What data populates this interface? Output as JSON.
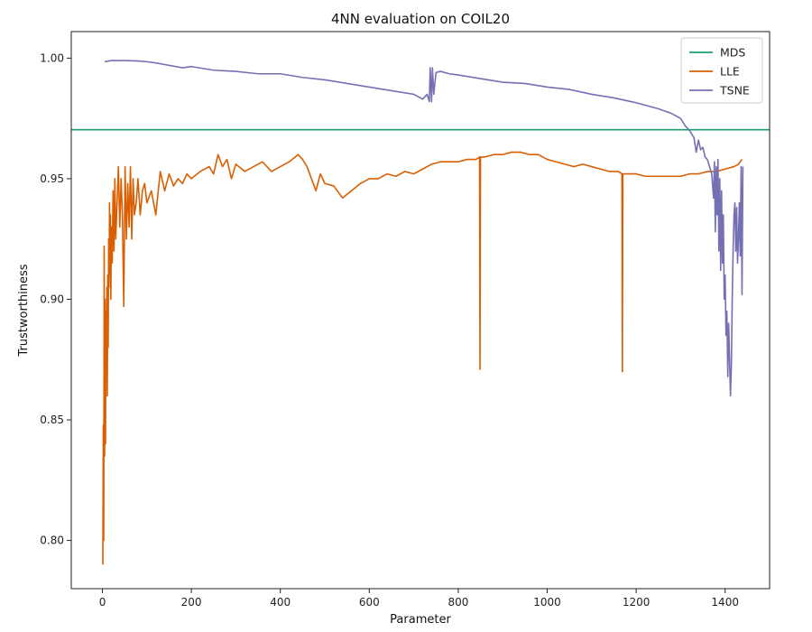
{
  "chart_data": {
    "type": "line",
    "title": "4NN evaluation on COIL20",
    "xlabel": "Parameter",
    "ylabel": "Trustworthiness",
    "xlim": [
      -70,
      1500
    ],
    "ylim": [
      0.78,
      1.011
    ],
    "x_ticks": [
      0,
      200,
      400,
      600,
      800,
      1000,
      1200,
      1400
    ],
    "y_ticks": [
      0.8,
      0.85,
      0.9,
      0.95,
      1.0
    ],
    "y_tick_labels": [
      "0.80",
      "0.85",
      "0.90",
      "0.95",
      "1.00"
    ],
    "grid": false,
    "legend_position": "upper-right",
    "series": [
      {
        "name": "MDS",
        "color": "#1b9e77",
        "kind": "constant",
        "x": [
          -70,
          1500
        ],
        "y": [
          0.9703,
          0.9703
        ]
      },
      {
        "name": "LLE",
        "color": "#d95f02",
        "kind": "line",
        "x": [
          1,
          2,
          3,
          4,
          5,
          6,
          7,
          8,
          9,
          10,
          11,
          12,
          13,
          14,
          15,
          16,
          17,
          18,
          19,
          20,
          22,
          24,
          26,
          28,
          30,
          33,
          36,
          39,
          42,
          45,
          48,
          51,
          54,
          57,
          60,
          63,
          66,
          69,
          72,
          76,
          80,
          85,
          90,
          95,
          100,
          110,
          120,
          130,
          140,
          150,
          160,
          170,
          180,
          190,
          200,
          220,
          240,
          250,
          260,
          270,
          280,
          290,
          300,
          320,
          340,
          360,
          380,
          400,
          420,
          440,
          450,
          460,
          470,
          480,
          490,
          500,
          520,
          540,
          560,
          580,
          600,
          620,
          640,
          660,
          680,
          700,
          720,
          740,
          760,
          780,
          800,
          820,
          840,
          848,
          849,
          850,
          851,
          860,
          880,
          900,
          920,
          940,
          960,
          980,
          1000,
          1020,
          1040,
          1060,
          1080,
          1100,
          1120,
          1140,
          1160,
          1168,
          1169,
          1170,
          1171,
          1180,
          1200,
          1220,
          1240,
          1260,
          1280,
          1300,
          1320,
          1340,
          1360,
          1380,
          1400,
          1420,
          1430,
          1438
        ],
        "y": [
          0.79,
          0.848,
          0.8,
          0.922,
          0.835,
          0.9,
          0.84,
          0.895,
          0.87,
          0.905,
          0.86,
          0.91,
          0.88,
          0.925,
          0.905,
          0.94,
          0.91,
          0.935,
          0.9,
          0.93,
          0.915,
          0.945,
          0.92,
          0.95,
          0.925,
          0.94,
          0.955,
          0.93,
          0.95,
          0.935,
          0.897,
          0.955,
          0.925,
          0.948,
          0.93,
          0.955,
          0.925,
          0.95,
          0.935,
          0.94,
          0.95,
          0.935,
          0.945,
          0.948,
          0.94,
          0.945,
          0.935,
          0.953,
          0.945,
          0.952,
          0.947,
          0.95,
          0.948,
          0.952,
          0.95,
          0.953,
          0.955,
          0.952,
          0.96,
          0.955,
          0.958,
          0.95,
          0.956,
          0.953,
          0.955,
          0.957,
          0.953,
          0.955,
          0.957,
          0.96,
          0.958,
          0.955,
          0.95,
          0.945,
          0.952,
          0.948,
          0.947,
          0.942,
          0.945,
          0.948,
          0.95,
          0.95,
          0.952,
          0.951,
          0.953,
          0.952,
          0.954,
          0.956,
          0.957,
          0.957,
          0.957,
          0.958,
          0.958,
          0.959,
          0.871,
          0.959,
          0.959,
          0.959,
          0.96,
          0.96,
          0.961,
          0.961,
          0.96,
          0.96,
          0.958,
          0.957,
          0.956,
          0.955,
          0.956,
          0.955,
          0.954,
          0.953,
          0.953,
          0.952,
          0.87,
          0.952,
          0.952,
          0.952,
          0.952,
          0.951,
          0.951,
          0.951,
          0.951,
          0.951,
          0.952,
          0.952,
          0.953,
          0.953,
          0.954,
          0.955,
          0.956,
          0.958
        ]
      },
      {
        "name": "TSNE",
        "color": "#7570b3",
        "kind": "line",
        "x": [
          5,
          20,
          50,
          80,
          100,
          120,
          150,
          180,
          200,
          250,
          300,
          350,
          400,
          450,
          500,
          550,
          600,
          650,
          700,
          720,
          730,
          735,
          737,
          740,
          742,
          745,
          750,
          760,
          780,
          800,
          850,
          900,
          950,
          1000,
          1050,
          1100,
          1150,
          1200,
          1250,
          1280,
          1300,
          1310,
          1320,
          1330,
          1335,
          1340,
          1345,
          1350,
          1355,
          1360,
          1365,
          1370,
          1374,
          1376,
          1378,
          1380,
          1382,
          1384,
          1386,
          1388,
          1390,
          1392,
          1394,
          1396,
          1398,
          1400,
          1402,
          1404,
          1406,
          1408,
          1410,
          1412,
          1414,
          1416,
          1418,
          1420,
          1422,
          1424,
          1426,
          1428,
          1430,
          1432,
          1434,
          1436,
          1438,
          1440
        ],
        "y": [
          0.9985,
          0.999,
          0.999,
          0.9988,
          0.9985,
          0.998,
          0.997,
          0.996,
          0.9965,
          0.995,
          0.9945,
          0.9935,
          0.9935,
          0.992,
          0.991,
          0.9895,
          0.988,
          0.9865,
          0.985,
          0.983,
          0.985,
          0.982,
          0.996,
          0.982,
          0.996,
          0.985,
          0.994,
          0.9945,
          0.9935,
          0.993,
          0.9915,
          0.99,
          0.9895,
          0.988,
          0.987,
          0.985,
          0.9835,
          0.9815,
          0.979,
          0.977,
          0.975,
          0.972,
          0.97,
          0.967,
          0.961,
          0.966,
          0.962,
          0.963,
          0.959,
          0.958,
          0.955,
          0.952,
          0.942,
          0.957,
          0.928,
          0.955,
          0.935,
          0.958,
          0.92,
          0.95,
          0.912,
          0.945,
          0.915,
          0.935,
          0.9,
          0.91,
          0.885,
          0.895,
          0.868,
          0.89,
          0.875,
          0.86,
          0.872,
          0.9,
          0.92,
          0.935,
          0.94,
          0.92,
          0.938,
          0.915,
          0.925,
          0.94,
          0.918,
          0.955,
          0.902,
          0.955
        ]
      }
    ]
  }
}
